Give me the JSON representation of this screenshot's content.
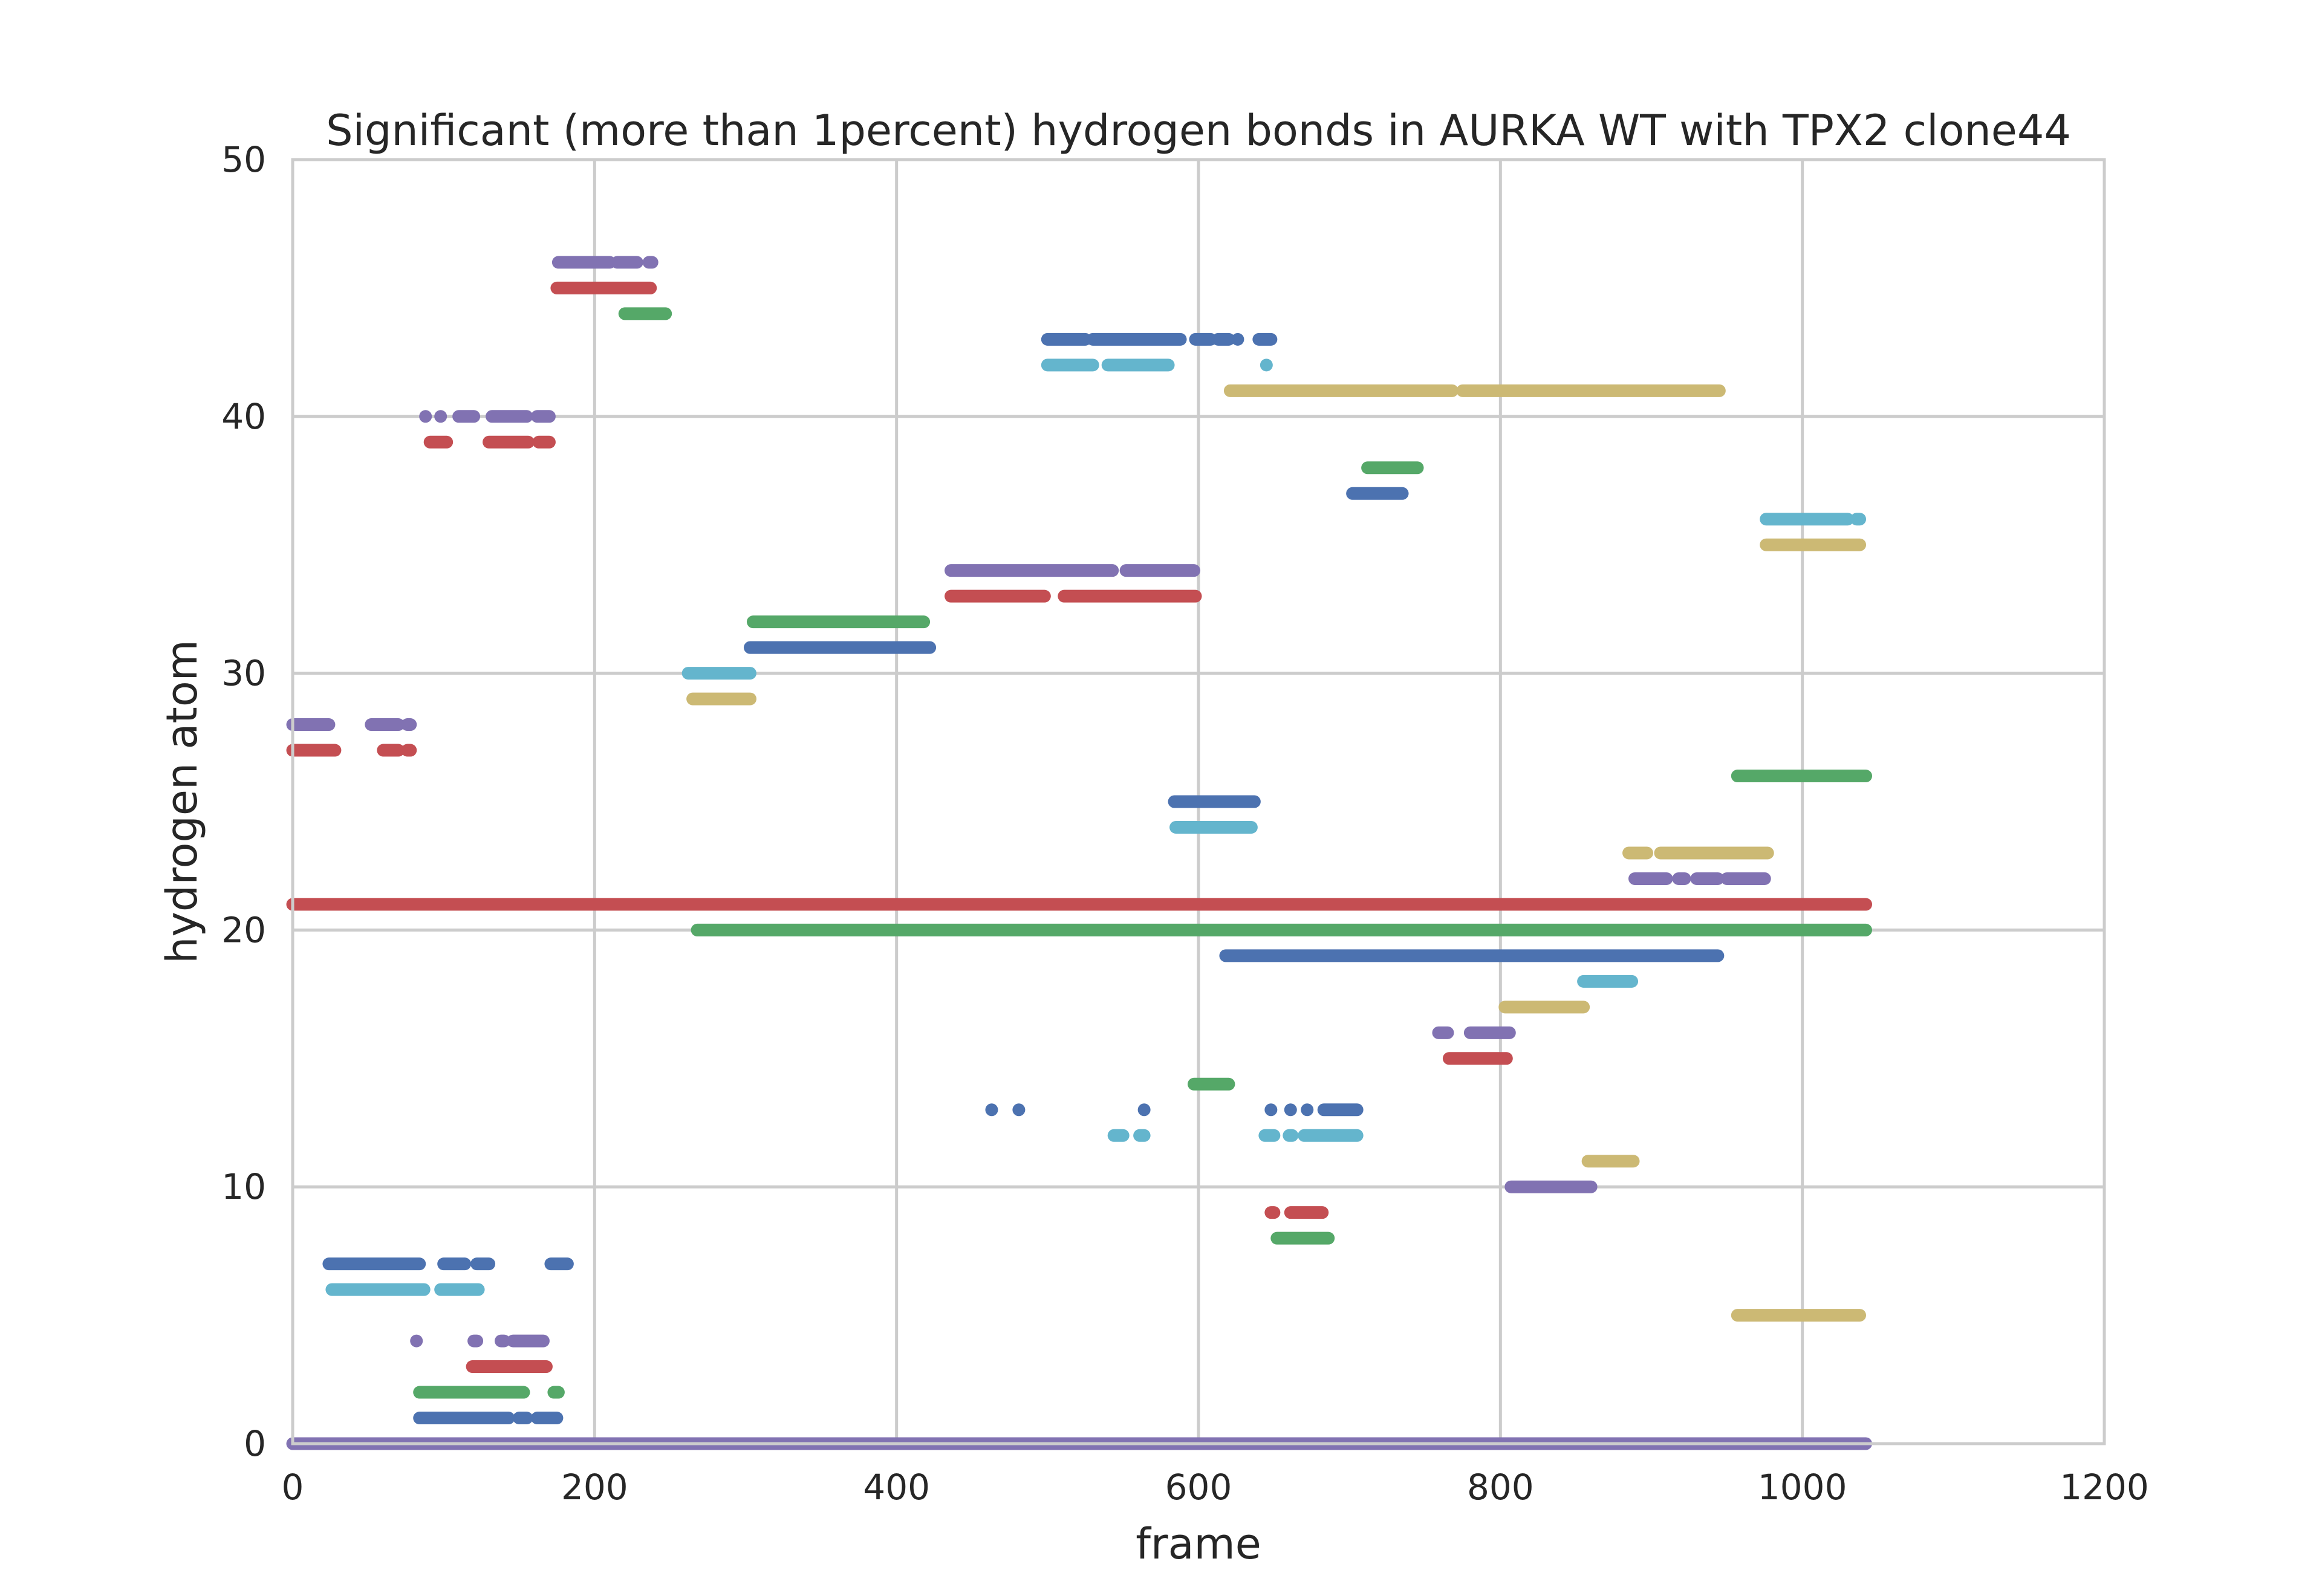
{
  "chart_data": {
    "type": "scatter",
    "title": "Significant (more than 1percent) hydrogen bonds in AURKA WT with TPX2 clone44",
    "xlabel": "frame",
    "ylabel": "hydrogen atom",
    "xlim": [
      0,
      1200
    ],
    "ylim": [
      0,
      50
    ],
    "xticks": [
      0,
      200,
      400,
      600,
      800,
      1000,
      1200
    ],
    "yticks": [
      0,
      10,
      20,
      30,
      40,
      50
    ],
    "grid": true,
    "legend": "none",
    "palette": [
      "#4c72b0",
      "#55a868",
      "#c44e52",
      "#8172b2",
      "#ccb974",
      "#64b5cd"
    ],
    "series": [
      {
        "y": 0,
        "color": "#8172b2",
        "segments": [
          [
            0,
            1042
          ]
        ]
      },
      {
        "y": 1,
        "color": "#4c72b0",
        "segments": [
          [
            84,
            143
          ],
          [
            150,
            155
          ],
          [
            162,
            175
          ]
        ]
      },
      {
        "y": 2,
        "color": "#55a868",
        "segments": [
          [
            84,
            153
          ],
          [
            173,
            176
          ]
        ]
      },
      {
        "y": 3,
        "color": "#c44e52",
        "segments": [
          [
            119,
            168
          ]
        ]
      },
      {
        "y": 4,
        "color": "#8172b2",
        "segments": [
          [
            82,
            82
          ],
          [
            120,
            122
          ],
          [
            138,
            140
          ],
          [
            146,
            166
          ]
        ]
      },
      {
        "y": 5,
        "color": "#ccb974",
        "segments": [
          [
            957,
            1038
          ]
        ]
      },
      {
        "y": 6,
        "color": "#64b5cd",
        "segments": [
          [
            26,
            87
          ],
          [
            98,
            123
          ]
        ]
      },
      {
        "y": 7,
        "color": "#4c72b0",
        "segments": [
          [
            24,
            84
          ],
          [
            100,
            114
          ],
          [
            122,
            130
          ],
          [
            171,
            182
          ]
        ]
      },
      {
        "y": 8,
        "color": "#55a868",
        "segments": [
          [
            652,
            686
          ]
        ]
      },
      {
        "y": 9,
        "color": "#c44e52",
        "segments": [
          [
            648,
            650
          ],
          [
            661,
            682
          ]
        ]
      },
      {
        "y": 10,
        "color": "#8172b2",
        "segments": [
          [
            807,
            860
          ]
        ]
      },
      {
        "y": 11,
        "color": "#ccb974",
        "segments": [
          [
            858,
            888
          ]
        ]
      },
      {
        "y": 12,
        "color": "#64b5cd",
        "segments": [
          [
            544,
            550
          ],
          [
            561,
            564
          ],
          [
            644,
            650
          ],
          [
            660,
            662
          ],
          [
            670,
            705
          ]
        ]
      },
      {
        "y": 13,
        "color": "#4c72b0",
        "segments": [
          [
            463,
            463
          ],
          [
            481,
            481
          ],
          [
            564,
            564
          ],
          [
            648,
            648
          ],
          [
            661,
            661
          ],
          [
            672,
            672
          ],
          [
            683,
            705
          ]
        ]
      },
      {
        "y": 14,
        "color": "#55a868",
        "segments": [
          [
            597,
            620
          ]
        ]
      },
      {
        "y": 15,
        "color": "#c44e52",
        "segments": [
          [
            766,
            804
          ]
        ]
      },
      {
        "y": 16,
        "color": "#8172b2",
        "segments": [
          [
            759,
            765
          ],
          [
            780,
            806
          ]
        ]
      },
      {
        "y": 17,
        "color": "#ccb974",
        "segments": [
          [
            803,
            855
          ]
        ]
      },
      {
        "y": 18,
        "color": "#64b5cd",
        "segments": [
          [
            855,
            887
          ]
        ]
      },
      {
        "y": 19,
        "color": "#4c72b0",
        "segments": [
          [
            618,
            944
          ]
        ]
      },
      {
        "y": 20,
        "color": "#55a868",
        "segments": [
          [
            268,
            1042
          ]
        ]
      },
      {
        "y": 21,
        "color": "#c44e52",
        "segments": [
          [
            0,
            1042
          ]
        ]
      },
      {
        "y": 22,
        "color": "#8172b2",
        "segments": [
          [
            889,
            910
          ],
          [
            918,
            922
          ],
          [
            930,
            944
          ],
          [
            950,
            975
          ]
        ]
      },
      {
        "y": 23,
        "color": "#ccb974",
        "segments": [
          [
            885,
            897
          ],
          [
            906,
            977
          ]
        ]
      },
      {
        "y": 24,
        "color": "#64b5cd",
        "segments": [
          [
            585,
            635
          ]
        ]
      },
      {
        "y": 25,
        "color": "#4c72b0",
        "segments": [
          [
            584,
            637
          ]
        ]
      },
      {
        "y": 26,
        "color": "#55a868",
        "segments": [
          [
            957,
            1042
          ]
        ]
      },
      {
        "y": 27,
        "color": "#c44e52",
        "segments": [
          [
            0,
            28
          ],
          [
            60,
            70
          ],
          [
            76,
            78
          ]
        ]
      },
      {
        "y": 28,
        "color": "#8172b2",
        "segments": [
          [
            0,
            24
          ],
          [
            52,
            70
          ],
          [
            76,
            78
          ]
        ]
      },
      {
        "y": 29,
        "color": "#ccb974",
        "segments": [
          [
            265,
            303
          ]
        ]
      },
      {
        "y": 30,
        "color": "#64b5cd",
        "segments": [
          [
            262,
            303
          ]
        ]
      },
      {
        "y": 31,
        "color": "#4c72b0",
        "segments": [
          [
            303,
            422
          ]
        ]
      },
      {
        "y": 32,
        "color": "#55a868",
        "segments": [
          [
            305,
            418
          ]
        ]
      },
      {
        "y": 33,
        "color": "#c44e52",
        "segments": [
          [
            436,
            498
          ],
          [
            511,
            598
          ]
        ]
      },
      {
        "y": 34,
        "color": "#8172b2",
        "segments": [
          [
            436,
            543
          ],
          [
            552,
            597
          ]
        ]
      },
      {
        "y": 35,
        "color": "#ccb974",
        "segments": [
          [
            976,
            1038
          ]
        ]
      },
      {
        "y": 36,
        "color": "#64b5cd",
        "segments": [
          [
            976,
            1030
          ],
          [
            1036,
            1038
          ]
        ]
      },
      {
        "y": 37,
        "color": "#4c72b0",
        "segments": [
          [
            702,
            735
          ]
        ]
      },
      {
        "y": 38,
        "color": "#55a868",
        "segments": [
          [
            712,
            745
          ]
        ]
      },
      {
        "y": 39,
        "color": "#c44e52",
        "segments": [
          [
            91,
            102
          ],
          [
            130,
            156
          ],
          [
            163,
            170
          ]
        ]
      },
      {
        "y": 40,
        "color": "#8172b2",
        "segments": [
          [
            88,
            88
          ],
          [
            98,
            98
          ],
          [
            110,
            120
          ],
          [
            132,
            155
          ],
          [
            162,
            170
          ]
        ]
      },
      {
        "y": 41,
        "color": "#ccb974",
        "segments": [
          [
            621,
            768
          ],
          [
            775,
            945
          ]
        ]
      },
      {
        "y": 42,
        "color": "#64b5cd",
        "segments": [
          [
            500,
            530
          ],
          [
            540,
            580
          ],
          [
            645,
            645
          ]
        ]
      },
      {
        "y": 43,
        "color": "#4c72b0",
        "segments": [
          [
            500,
            525
          ],
          [
            530,
            588
          ],
          [
            598,
            608
          ],
          [
            613,
            620
          ],
          [
            626,
            626
          ],
          [
            640,
            648
          ]
        ]
      },
      {
        "y": 44,
        "color": "#55a868",
        "segments": [
          [
            220,
            247
          ]
        ]
      },
      {
        "y": 45,
        "color": "#c44e52",
        "segments": [
          [
            175,
            237
          ]
        ]
      },
      {
        "y": 46,
        "color": "#8172b2",
        "segments": [
          [
            176,
            210
          ],
          [
            215,
            228
          ],
          [
            236,
            238
          ]
        ]
      }
    ]
  }
}
